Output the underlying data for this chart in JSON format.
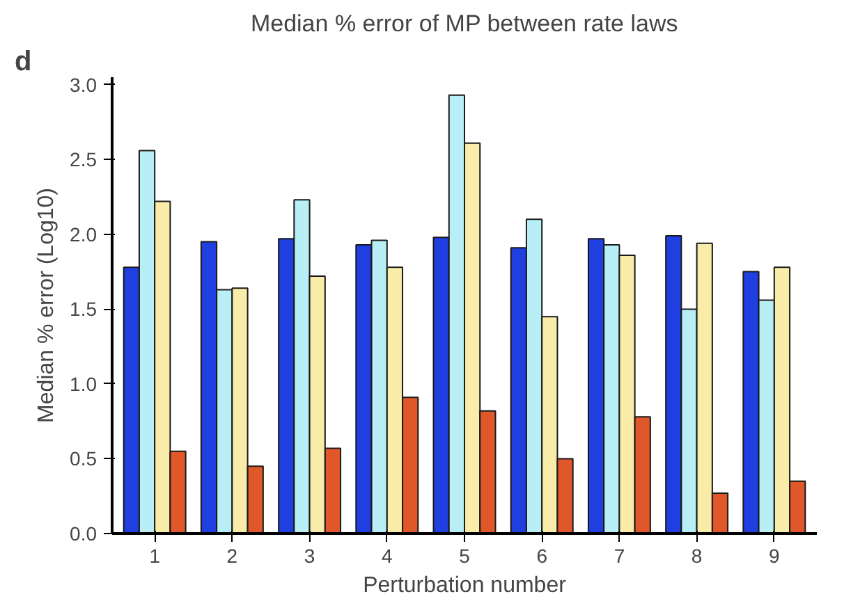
{
  "chart_data": {
    "type": "bar",
    "title": "Median % error of MP between rate laws",
    "xlabel": "Perturbation number",
    "ylabel": "Median % error (Log10)",
    "annotations": [
      "d"
    ],
    "categories": [
      "1",
      "2",
      "3",
      "4",
      "5",
      "6",
      "7",
      "8",
      "9"
    ],
    "series": [
      {
        "color": "#1f3fe0",
        "values": [
          1.78,
          1.95,
          1.97,
          1.93,
          1.98,
          1.91,
          1.97,
          1.99,
          1.75
        ]
      },
      {
        "color": "#b8eef5",
        "values": [
          2.56,
          1.63,
          2.23,
          1.96,
          2.93,
          2.1,
          1.93,
          1.5,
          1.56
        ]
      },
      {
        "color": "#f8eca8",
        "values": [
          2.22,
          1.64,
          1.72,
          1.78,
          2.61,
          1.45,
          1.86,
          1.94,
          1.78
        ]
      },
      {
        "color": "#e0582a",
        "values": [
          0.55,
          0.45,
          0.57,
          0.91,
          0.82,
          0.5,
          0.78,
          0.27,
          0.35
        ]
      }
    ],
    "ylim": [
      0,
      3.05
    ],
    "yticks": [
      {
        "value": 0,
        "label": "0.0"
      },
      {
        "value": 0.5,
        "label": "0.5"
      },
      {
        "value": 1,
        "label": "1.0"
      },
      {
        "value": 1.5,
        "label": "1.5"
      },
      {
        "value": 2,
        "label": "2.0"
      },
      {
        "value": 2.5,
        "label": "2.5"
      },
      {
        "value": 3,
        "label": "3.0"
      }
    ],
    "grid": false
  }
}
